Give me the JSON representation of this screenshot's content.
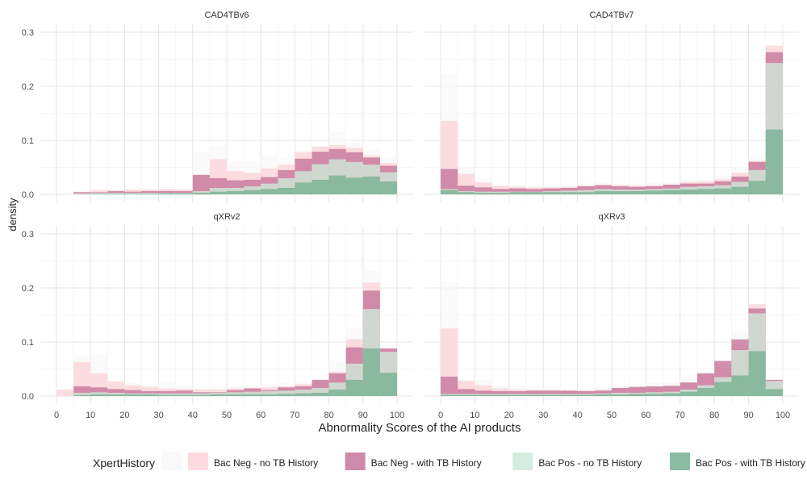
{
  "chart_data": {
    "type": "histogram",
    "xlabel": "Abnormality Scores of the AI products",
    "ylabel": "density",
    "xlim": [
      0,
      100
    ],
    "ylim": [
      0,
      0.31
    ],
    "x_ticks": [
      0,
      10,
      20,
      30,
      40,
      50,
      60,
      70,
      80,
      90,
      100
    ],
    "y_ticks": [
      0.0,
      0.1,
      0.2,
      0.3
    ],
    "y_tick_labels": [
      "0.0",
      "0.1",
      "0.2",
      "0.3"
    ],
    "grid": true,
    "bins": [
      [
        0,
        5
      ],
      [
        5,
        10
      ],
      [
        10,
        15
      ],
      [
        15,
        20
      ],
      [
        20,
        25
      ],
      [
        25,
        30
      ],
      [
        30,
        35
      ],
      [
        35,
        40
      ],
      [
        40,
        45
      ],
      [
        45,
        50
      ],
      [
        50,
        55
      ],
      [
        55,
        60
      ],
      [
        60,
        65
      ],
      [
        65,
        70
      ],
      [
        70,
        75
      ],
      [
        75,
        80
      ],
      [
        80,
        85
      ],
      [
        85,
        90
      ],
      [
        90,
        95
      ],
      [
        95,
        100
      ]
    ],
    "bin_labels": [
      "0-5",
      "5-10",
      "10-15",
      "15-20",
      "20-25",
      "25-30",
      "30-35",
      "35-40",
      "40-45",
      "45-50",
      "50-55",
      "55-60",
      "60-65",
      "65-70",
      "70-75",
      "75-80",
      "80-85",
      "85-90",
      "90-95",
      "95-100"
    ],
    "legend": {
      "title": "XpertHistory",
      "position": "bottom",
      "entries": [
        {
          "label": "",
          "color": "#f8f8f8"
        },
        {
          "label": "Bac Neg - no TB History",
          "color": "#fdd4d9"
        },
        {
          "label": "Bac Neg - with TB History",
          "color": "#c5759a"
        },
        {
          "label": "Bac Pos - no TB History",
          "color": "#cfe9da"
        },
        {
          "label": "Bac Pos - with TB History",
          "color": "#78b193"
        }
      ]
    },
    "panels": [
      {
        "title": "CAD4TBv6",
        "series": [
          {
            "values": [
              0.001,
              0.005,
              0.012,
              0.008,
              0.008,
              0.008,
              0.009,
              0.009,
              0.078,
              0.09,
              0.06,
              0.062,
              0.072,
              0.065,
              0.082,
              0.09,
              0.115,
              0.096,
              0.082,
              0.068
            ]
          },
          {
            "name": "Bac Neg - no TB History",
            "values": [
              0.001,
              0.005,
              0.008,
              0.008,
              0.009,
              0.009,
              0.01,
              0.009,
              0.036,
              0.065,
              0.043,
              0.04,
              0.048,
              0.055,
              0.078,
              0.088,
              0.091,
              0.086,
              0.072,
              0.058
            ]
          },
          {
            "name": "Bac Neg - with TB History",
            "values": [
              0.0,
              0.004,
              0.004,
              0.006,
              0.005,
              0.006,
              0.006,
              0.006,
              0.036,
              0.03,
              0.026,
              0.027,
              0.032,
              0.045,
              0.066,
              0.079,
              0.084,
              0.078,
              0.068,
              0.053
            ]
          },
          {
            "name": "Bac Pos - no TB History",
            "values": [
              0.0,
              0.002,
              0.003,
              0.003,
              0.003,
              0.003,
              0.003,
              0.003,
              0.006,
              0.012,
              0.012,
              0.015,
              0.02,
              0.03,
              0.043,
              0.056,
              0.065,
              0.06,
              0.055,
              0.041
            ]
          },
          {
            "name": "Bac Pos - with TB History",
            "values": [
              0.0,
              0.0,
              0.001,
              0.001,
              0.001,
              0.001,
              0.002,
              0.002,
              0.003,
              0.005,
              0.006,
              0.008,
              0.01,
              0.012,
              0.022,
              0.027,
              0.035,
              0.031,
              0.033,
              0.024
            ]
          }
        ]
      },
      {
        "title": "CAD4TBv7",
        "series": [
          {
            "values": [
              0.223,
              0.05,
              0.03,
              0.02,
              0.018,
              0.016,
              0.018,
              0.018,
              0.02,
              0.022,
              0.02,
              0.02,
              0.022,
              0.022,
              0.026,
              0.028,
              0.035,
              0.05,
              0.07,
              0.275
            ]
          },
          {
            "name": "Bac Neg - no TB History",
            "values": [
              0.136,
              0.038,
              0.022,
              0.016,
              0.014,
              0.013,
              0.013,
              0.014,
              0.016,
              0.018,
              0.017,
              0.016,
              0.017,
              0.018,
              0.023,
              0.024,
              0.028,
              0.04,
              0.062,
              0.275
            ]
          },
          {
            "name": "Bac Neg - with TB History",
            "values": [
              0.047,
              0.016,
              0.013,
              0.01,
              0.011,
              0.01,
              0.011,
              0.012,
              0.015,
              0.017,
              0.015,
              0.014,
              0.015,
              0.018,
              0.02,
              0.02,
              0.024,
              0.033,
              0.06,
              0.263
            ]
          },
          {
            "name": "Bac Pos - no TB History",
            "values": [
              0.01,
              0.006,
              0.005,
              0.005,
              0.005,
              0.005,
              0.006,
              0.007,
              0.008,
              0.01,
              0.009,
              0.009,
              0.01,
              0.011,
              0.014,
              0.015,
              0.017,
              0.023,
              0.045,
              0.243
            ]
          },
          {
            "name": "Bac Pos - with TB History",
            "values": [
              0.008,
              0.004,
              0.003,
              0.003,
              0.004,
              0.004,
              0.004,
              0.004,
              0.004,
              0.006,
              0.006,
              0.006,
              0.007,
              0.008,
              0.009,
              0.01,
              0.011,
              0.014,
              0.025,
              0.12
            ]
          }
        ]
      },
      {
        "title": "qXRv2",
        "series": [
          {
            "values": [
              0.012,
              0.075,
              0.078,
              0.027,
              0.024,
              0.022,
              0.027,
              0.02,
              0.015,
              0.016,
              0.018,
              0.02,
              0.022,
              0.024,
              0.026,
              0.032,
              0.065,
              0.125,
              0.232,
              0.09
            ]
          },
          {
            "name": "Bac Neg - no TB History",
            "values": [
              0.012,
              0.063,
              0.042,
              0.027,
              0.02,
              0.017,
              0.014,
              0.013,
              0.012,
              0.012,
              0.014,
              0.015,
              0.016,
              0.018,
              0.022,
              0.026,
              0.045,
              0.105,
              0.21,
              0.088
            ]
          },
          {
            "name": "Bac Neg - with TB History",
            "values": [
              0.0,
              0.018,
              0.016,
              0.013,
              0.011,
              0.009,
              0.009,
              0.01,
              0.007,
              0.007,
              0.011,
              0.014,
              0.011,
              0.016,
              0.018,
              0.03,
              0.042,
              0.09,
              0.195,
              0.088
            ]
          },
          {
            "name": "Bac Pos - no TB History",
            "values": [
              0.0,
              0.006,
              0.007,
              0.006,
              0.005,
              0.005,
              0.005,
              0.005,
              0.005,
              0.006,
              0.007,
              0.008,
              0.009,
              0.01,
              0.012,
              0.015,
              0.025,
              0.06,
              0.161,
              0.082
            ]
          },
          {
            "name": "Bac Pos - with TB History",
            "values": [
              0.0,
              0.002,
              0.003,
              0.003,
              0.003,
              0.003,
              0.002,
              0.002,
              0.002,
              0.003,
              0.003,
              0.003,
              0.003,
              0.004,
              0.005,
              0.006,
              0.012,
              0.03,
              0.088,
              0.043
            ]
          }
        ]
      },
      {
        "title": "qXRv3",
        "series": [
          {
            "values": [
              0.212,
              0.03,
              0.03,
              0.02,
              0.02,
              0.018,
              0.016,
              0.014,
              0.014,
              0.016,
              0.02,
              0.02,
              0.024,
              0.024,
              0.032,
              0.045,
              0.055,
              0.12,
              0.11,
              0.03
            ]
          },
          {
            "name": "Bac Neg - no TB History",
            "values": [
              0.125,
              0.028,
              0.02,
              0.014,
              0.012,
              0.011,
              0.011,
              0.01,
              0.01,
              0.012,
              0.014,
              0.015,
              0.016,
              0.017,
              0.025,
              0.04,
              0.052,
              0.095,
              0.17,
              0.03
            ]
          },
          {
            "name": "Bac Neg - with TB History",
            "values": [
              0.036,
              0.013,
              0.01,
              0.009,
              0.009,
              0.01,
              0.01,
              0.01,
              0.009,
              0.01,
              0.015,
              0.017,
              0.018,
              0.019,
              0.025,
              0.042,
              0.065,
              0.105,
              0.162,
              0.03
            ]
          },
          {
            "name": "Bac Pos - no TB History",
            "values": [
              0.004,
              0.004,
              0.004,
              0.004,
              0.004,
              0.004,
              0.004,
              0.004,
              0.004,
              0.005,
              0.006,
              0.006,
              0.007,
              0.008,
              0.012,
              0.02,
              0.035,
              0.085,
              0.153,
              0.028
            ]
          },
          {
            "name": "Bac Pos - with TB History",
            "values": [
              0.002,
              0.002,
              0.002,
              0.002,
              0.002,
              0.002,
              0.002,
              0.002,
              0.002,
              0.003,
              0.003,
              0.004,
              0.004,
              0.005,
              0.008,
              0.015,
              0.026,
              0.038,
              0.083,
              0.013
            ]
          }
        ]
      }
    ]
  }
}
